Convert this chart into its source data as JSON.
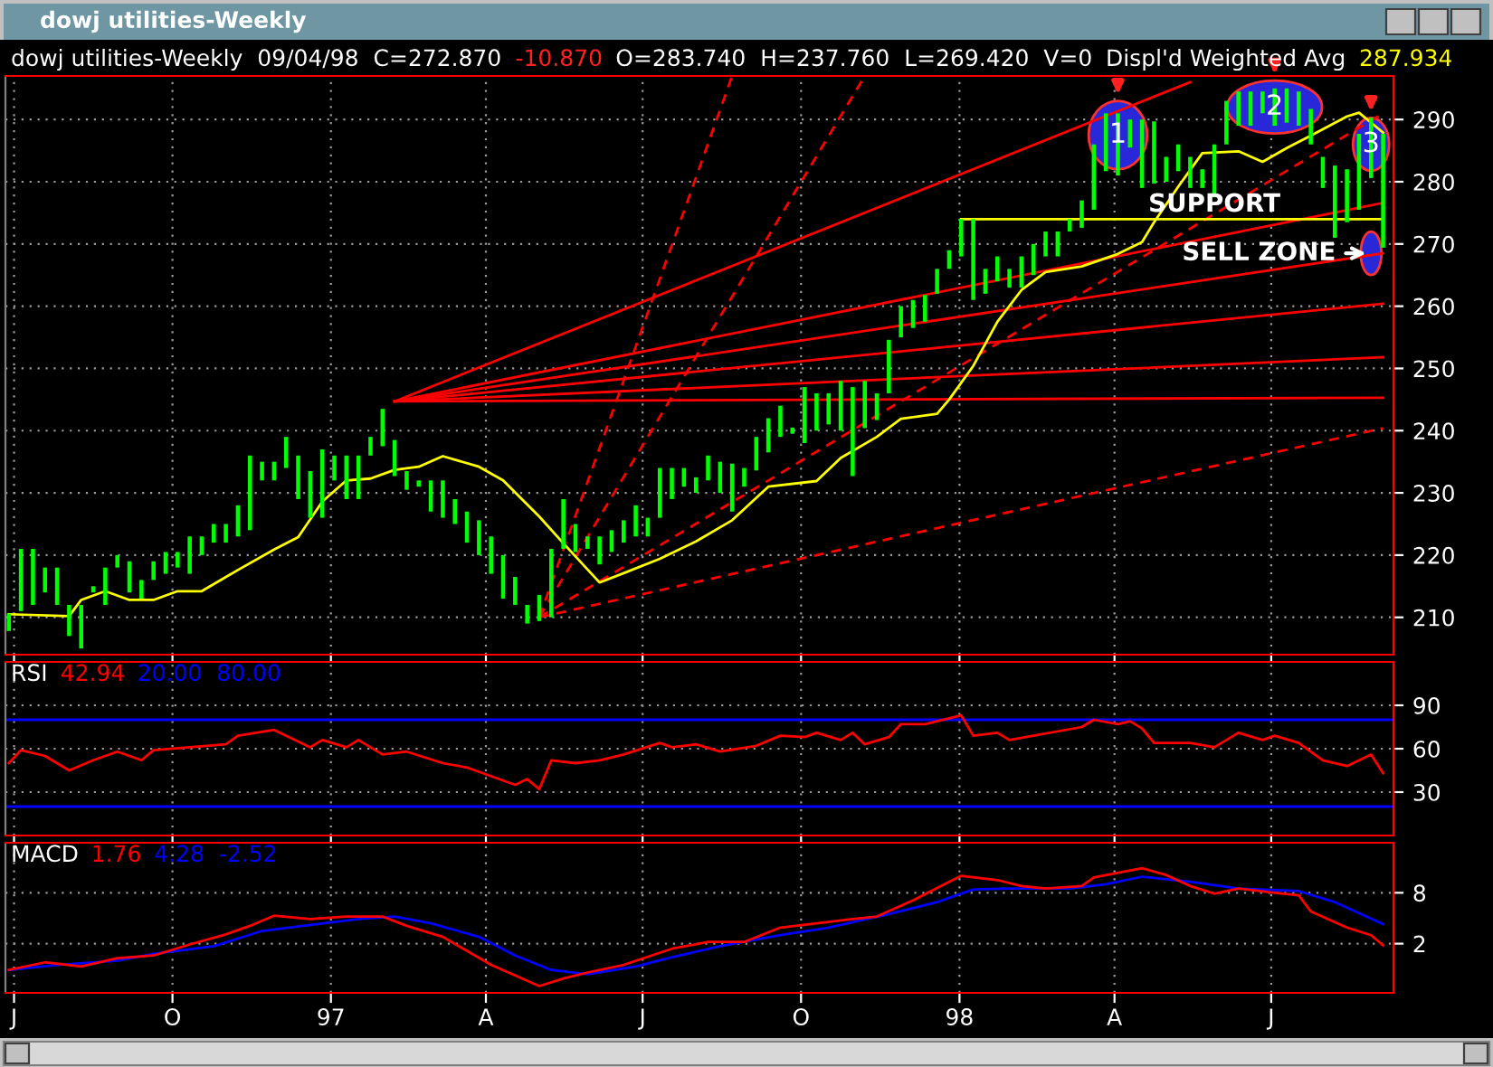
{
  "chart_data": [
    {
      "type": "bar",
      "title": "dowj utilities-Weekly",
      "subtitle": "dowj utilities-Weekly  09/04/98  C=272.870",
      "annotations": [
        "-10.870",
        "O=283.740  H=237.760  L=269.420  V=0",
        "287.934",
        {
          "text": "1",
          "x": "1998-04-03",
          "y": 287.5
        },
        {
          "text": "2",
          "x": "1998-07-03",
          "y": 292
        },
        {
          "text": "3",
          "x": "1998-08-28",
          "y": 286
        },
        {
          "text": "SUPPORT",
          "x": "1998-05-29",
          "y": 276.3
        },
        {
          "text": "SELL ZONE",
          "x": "1998-08-28",
          "y": 268.5
        }
      ],
      "series": [
        {
          "type": "bar",
          "color": "#00ff00",
          "x": [
            "1996-06-28",
            "1996-07-05",
            "1996-07-12",
            "1996-07-19",
            "1996-07-26",
            "1996-08-02",
            "1996-08-09",
            "1996-08-16",
            "1996-08-23",
            "1996-08-30",
            "1996-09-06",
            "1996-09-13",
            "1996-09-20",
            "1996-09-27",
            "1996-10-04",
            "1996-10-11",
            "1996-10-18",
            "1996-10-25",
            "1996-11-01",
            "1996-11-08",
            "1996-11-15",
            "1996-11-22",
            "1996-11-29",
            "1996-12-06",
            "1996-12-13",
            "1996-12-20",
            "1996-12-27",
            "1997-01-03",
            "1997-01-10",
            "1997-01-17",
            "1997-01-24",
            "1997-01-31",
            "1997-02-07",
            "1997-02-14",
            "1997-02-21",
            "1997-02-28",
            "1997-03-07",
            "1997-03-14",
            "1997-03-21",
            "1997-03-28",
            "1997-04-04",
            "1997-04-11",
            "1997-04-18",
            "1997-04-25",
            "1997-05-02",
            "1997-05-09",
            "1997-05-16",
            "1997-05-23",
            "1997-05-30",
            "1997-06-06",
            "1997-06-13",
            "1997-06-20",
            "1997-06-27",
            "1997-07-04",
            "1997-07-11",
            "1997-07-18",
            "1997-07-25",
            "1997-08-01",
            "1997-08-08",
            "1997-08-15",
            "1997-08-22",
            "1997-08-29",
            "1997-09-05",
            "1997-09-12",
            "1997-09-19",
            "1997-09-26",
            "1997-10-03",
            "1997-10-10",
            "1997-10-17",
            "1997-10-24",
            "1997-10-31",
            "1997-11-07",
            "1997-11-14",
            "1997-11-21",
            "1997-11-28",
            "1997-12-05",
            "1997-12-12",
            "1997-12-19",
            "1997-12-26",
            "1998-01-02",
            "1998-01-09",
            "1998-01-16",
            "1998-01-23",
            "1998-01-30",
            "1998-02-06",
            "1998-02-13",
            "1998-02-20",
            "1998-02-27",
            "1998-03-06",
            "1998-03-13",
            "1998-03-20",
            "1998-03-27",
            "1998-04-03",
            "1998-04-10",
            "1998-04-17",
            "1998-04-24",
            "1998-05-01",
            "1998-05-08",
            "1998-05-15",
            "1998-05-22",
            "1998-05-29",
            "1998-06-05",
            "1998-06-12",
            "1998-06-19",
            "1998-06-26",
            "1998-07-03",
            "1998-07-10",
            "1998-07-17",
            "1998-07-24",
            "1998-07-31",
            "1998-08-07",
            "1998-08-14",
            "1998-08-21",
            "1998-08-28",
            "1998-09-04"
          ],
          "base": [
            207.8,
            211,
            212,
            214,
            212,
            207,
            205,
            214,
            212,
            218,
            214,
            213,
            216,
            217,
            218,
            217,
            220,
            222,
            222,
            223,
            224,
            232,
            232,
            234,
            229,
            226,
            226,
            232,
            229,
            229,
            236,
            237.5,
            232.7,
            230.5,
            231,
            227,
            226,
            225,
            222,
            220,
            217,
            213,
            212,
            209,
            209.4,
            210,
            221,
            220.5,
            221,
            218.5,
            220.5,
            222,
            223,
            223,
            226,
            229,
            231,
            230,
            232,
            230,
            227,
            231,
            233.6,
            236.5,
            239,
            239.5,
            238,
            240,
            241,
            240,
            232.7,
            240.4,
            241.7,
            246,
            255,
            256.5,
            257.5,
            262,
            266,
            268,
            261,
            262,
            264,
            263,
            263,
            265,
            268,
            268,
            272,
            272.6,
            275.5,
            281.7,
            281,
            285.5,
            279,
            279.7,
            280,
            281.7,
            279,
            279,
            277.5,
            286,
            289,
            289,
            291,
            289,
            289.5,
            289,
            286,
            279,
            271,
            273.5,
            275.5,
            280.6,
            269.4
          ],
          "values": [
            2.8,
            10,
            9,
            4,
            6,
            5,
            7,
            1,
            6,
            2,
            5,
            3,
            3,
            3.5,
            2.5,
            6,
            3,
            3,
            3,
            5,
            12,
            3,
            3,
            5,
            7,
            7.5,
            11,
            4,
            7,
            7,
            3,
            6,
            5.8,
            3,
            1,
            5,
            6,
            4,
            5,
            5.6,
            6,
            7,
            4.5,
            3,
            4.2,
            11,
            8,
            4.5,
            2,
            4.5,
            3.5,
            3.6,
            5,
            3,
            8,
            5,
            3,
            2.5,
            4,
            5,
            7.7,
            3,
            5.4,
            5.5,
            5,
            1,
            9,
            6,
            5,
            8,
            14.3,
            7.6,
            4.3,
            8.6,
            5,
            4.5,
            4.3,
            4,
            3,
            6,
            13,
            4,
            4,
            3,
            5,
            5,
            4,
            4,
            2,
            4.4,
            10.5,
            9.3,
            10,
            4.5,
            11,
            10,
            4,
            4.3,
            5,
            3,
            8.5,
            7,
            5.5,
            5.5,
            3.5,
            6,
            5.5,
            5.5,
            5.7,
            5,
            11.6,
            8.5,
            12.2,
            9.7,
            18.3
          ]
        },
        {
          "type": "line",
          "name": "Displ'd Weighted Avg",
          "color": "#ffff00",
          "x": [
            "1996-06-28",
            "1996-08-02",
            "1996-08-09",
            "1996-08-23",
            "1996-09-06",
            "1996-09-20",
            "1996-10-04",
            "1996-10-18",
            "1996-11-08",
            "1996-11-29",
            "1996-12-13",
            "1996-12-27",
            "1997-01-10",
            "1997-01-24",
            "1997-02-07",
            "1997-02-21",
            "1997-03-07",
            "1997-03-28",
            "1997-04-11",
            "1997-05-02",
            "1997-05-16",
            "1997-06-06",
            "1997-06-20",
            "1997-07-11",
            "1997-08-01",
            "1997-08-22",
            "1997-09-12",
            "1997-10-10",
            "1997-10-24",
            "1997-11-14",
            "1997-11-28",
            "1997-12-19",
            "1997-12-26",
            "1998-01-09",
            "1998-01-23",
            "1998-02-06",
            "1998-02-20",
            "1998-03-13",
            "1998-04-03",
            "1998-04-17",
            "1998-04-24",
            "1998-05-08",
            "1998-05-22",
            "1998-06-12",
            "1998-06-26",
            "1998-07-10",
            "1998-07-24",
            "1998-08-14",
            "1998-08-21",
            "1998-09-04"
          ],
          "values": [
            210.5,
            210.2,
            212.8,
            214.2,
            212.8,
            212.8,
            214.2,
            214.2,
            217.6,
            220.9,
            222.9,
            228.6,
            232,
            232.3,
            233.7,
            234.2,
            235.9,
            234.2,
            232,
            226.2,
            221.9,
            215.6,
            217.1,
            219.4,
            222.2,
            225.6,
            231,
            231.9,
            235.6,
            239,
            241.9,
            242.7,
            245,
            250.4,
            257.5,
            262.6,
            265.5,
            266.4,
            268.4,
            270.3,
            273.5,
            279.2,
            284.6,
            284.9,
            283.2,
            285.4,
            287.4,
            290.5,
            291.1,
            287.9
          ]
        },
        {
          "type": "line",
          "color": "#ffff00",
          "x": [
            "1998-01-02",
            "1998-09-04"
          ],
          "values": [
            274,
            274
          ]
        },
        {
          "type": "line",
          "color": "#ff0000",
          "x": [
            "1997-02-07",
            "1998-05-15"
          ],
          "values": [
            244.7,
            296
          ]
        },
        {
          "type": "line",
          "color": "#ff0000",
          "x": [
            "1997-02-07",
            "1998-09-04"
          ],
          "values": [
            244.7,
            276.6
          ]
        },
        {
          "type": "line",
          "color": "#ff0000",
          "x": [
            "1997-02-07",
            "1998-09-04"
          ],
          "values": [
            244.7,
            268.5
          ]
        },
        {
          "type": "line",
          "color": "#ff0000",
          "x": [
            "1997-02-07",
            "1998-09-04"
          ],
          "values": [
            244.7,
            260.4
          ]
        },
        {
          "type": "line",
          "color": "#ff0000",
          "x": [
            "1997-02-07",
            "1998-09-04"
          ],
          "values": [
            244.7,
            251.8
          ]
        },
        {
          "type": "line",
          "color": "#ff0000",
          "x": [
            "1997-02-07",
            "1998-09-04"
          ],
          "values": [
            244.7,
            245.3
          ]
        },
        {
          "type": "line",
          "color": "#ff0000",
          "line_style": "dashed",
          "x": [
            "1997-05-02",
            "1998-09-04"
          ],
          "values": [
            210,
            240.4
          ]
        },
        {
          "type": "line",
          "color": "#ff0000",
          "line_style": "dashed",
          "x": [
            "1997-05-02",
            "1998-09-04"
          ],
          "values": [
            210,
            291
          ]
        },
        {
          "type": "line",
          "color": "#ff0000",
          "line_style": "dashed",
          "x": [
            "1997-05-02",
            "1997-11-07"
          ],
          "values": [
            210,
            297
          ]
        },
        {
          "type": "line",
          "color": "#ff0000",
          "line_style": "dashed",
          "x": [
            "1997-05-02",
            "1997-08-22"
          ],
          "values": [
            210,
            297
          ]
        }
      ],
      "xlim": [
        "1996-06-26",
        "1998-09-10"
      ],
      "xticks": [
        {
          "value": "1996-07-01",
          "label": null
        },
        {
          "value": "1996-10-01",
          "label": null
        },
        {
          "value": "1997-01-01",
          "label": null
        },
        {
          "value": "1997-04-01",
          "label": null
        },
        {
          "value": "1997-07-01",
          "label": null
        },
        {
          "value": "1997-10-01",
          "label": null
        },
        {
          "value": "1998-01-01",
          "label": null
        },
        {
          "value": "1998-04-01",
          "label": null
        },
        {
          "value": "1998-07-01",
          "label": null
        }
      ],
      "ylim": [
        204,
        297
      ],
      "yticks": [
        210,
        220,
        230,
        240,
        250,
        260,
        270,
        280,
        290
      ],
      "tick_labels": "y",
      "grid": true,
      "legend": false
    },
    {
      "type": "line",
      "title": "RSI",
      "annotations": [
        "42.94",
        "20.00  80.00"
      ],
      "series": [
        {
          "color": "#ff0000",
          "x": [
            "1996-06-28",
            "1996-07-05",
            "1996-07-19",
            "1996-08-02",
            "1996-08-16",
            "1996-08-30",
            "1996-09-13",
            "1996-09-20",
            "1996-10-11",
            "1996-11-01",
            "1996-11-08",
            "1996-11-29",
            "1996-12-20",
            "1996-12-27",
            "1997-01-10",
            "1997-01-17",
            "1997-01-31",
            "1997-02-14",
            "1997-03-07",
            "1997-03-21",
            "1997-04-18",
            "1997-04-25",
            "1997-05-02",
            "1997-05-09",
            "1997-05-23",
            "1997-06-06",
            "1997-06-20",
            "1997-07-11",
            "1997-07-18",
            "1997-08-01",
            "1997-08-15",
            "1997-09-05",
            "1997-09-19",
            "1997-10-03",
            "1997-10-10",
            "1997-10-24",
            "1997-10-31",
            "1997-11-07",
            "1997-11-21",
            "1997-11-28",
            "1997-12-12",
            "1998-01-02",
            "1998-01-09",
            "1998-01-23",
            "1998-01-30",
            "1998-03-13",
            "1998-03-20",
            "1998-04-03",
            "1998-04-10",
            "1998-04-17",
            "1998-04-24",
            "1998-05-15",
            "1998-05-29",
            "1998-06-12",
            "1998-06-26",
            "1998-07-03",
            "1998-07-17",
            "1998-07-31",
            "1998-08-14",
            "1998-08-28",
            "1998-09-04"
          ],
          "values": [
            50,
            59,
            55,
            45,
            52,
            58,
            52,
            59,
            61,
            63,
            69,
            73,
            61,
            66,
            61,
            66,
            56,
            58,
            50,
            47,
            35,
            39,
            32,
            52,
            50,
            52,
            56,
            64,
            61,
            63,
            58,
            62,
            69,
            68,
            71,
            66,
            71,
            63,
            68,
            77,
            77,
            83,
            69,
            71,
            66,
            75,
            80,
            77,
            79,
            74,
            64,
            64,
            61,
            71,
            66,
            69,
            64,
            52,
            48,
            56,
            43
          ]
        }
      ],
      "ref_lines": [
        {
          "axis": "y",
          "value": 20,
          "color": "#0000ff"
        },
        {
          "axis": "y",
          "value": 80,
          "color": "#0000ff"
        }
      ],
      "xlim": [
        "1996-06-26",
        "1998-09-10"
      ],
      "xticks": [
        {
          "value": "1996-07-01",
          "label": null
        },
        {
          "value": "1996-10-01",
          "label": null
        },
        {
          "value": "1997-01-01",
          "label": null
        },
        {
          "value": "1997-04-01",
          "label": null
        },
        {
          "value": "1997-07-01",
          "label": null
        },
        {
          "value": "1997-10-01",
          "label": null
        },
        {
          "value": "1998-01-01",
          "label": null
        },
        {
          "value": "1998-04-01",
          "label": null
        },
        {
          "value": "1998-07-01",
          "label": null
        }
      ],
      "ylim": [
        0,
        120
      ],
      "yticks": [
        30,
        60,
        90
      ],
      "tick_labels": "y",
      "grid": true,
      "legend": false
    },
    {
      "type": "line",
      "title": "MACD",
      "annotations": [
        "1.76",
        "4.28  -2.52"
      ],
      "series": [
        {
          "color": "#ff0000",
          "x": [
            "1996-06-28",
            "1996-07-19",
            "1996-08-09",
            "1996-08-30",
            "1996-09-20",
            "1996-10-11",
            "1996-11-01",
            "1996-11-15",
            "1996-11-29",
            "1996-12-20",
            "1997-01-10",
            "1997-01-31",
            "1997-02-14",
            "1997-03-07",
            "1997-04-04",
            "1997-05-02",
            "1997-05-16",
            "1997-05-30",
            "1997-06-20",
            "1997-07-18",
            "1997-08-08",
            "1997-08-29",
            "1997-09-19",
            "1997-10-10",
            "1997-10-31",
            "1997-11-14",
            "1997-12-05",
            "1997-12-26",
            "1998-01-02",
            "1998-01-23",
            "1998-02-06",
            "1998-02-20",
            "1998-03-13",
            "1998-03-20",
            "1998-04-17",
            "1998-05-01",
            "1998-05-15",
            "1998-05-29",
            "1998-06-12",
            "1998-07-03",
            "1998-07-17",
            "1998-07-24",
            "1998-08-14",
            "1998-08-28",
            "1998-09-04"
          ],
          "values": [
            -1.1,
            -0.2,
            -0.7,
            0.3,
            0.6,
            1.9,
            3.1,
            4.1,
            5.3,
            4.9,
            5.2,
            5.2,
            4.1,
            2.8,
            -0.5,
            -3,
            -2.1,
            -1.4,
            -0.5,
            1.4,
            2.2,
            2.2,
            3.9,
            4.4,
            4.9,
            5.2,
            7.1,
            9.3,
            10,
            9.5,
            8.8,
            8.5,
            8.8,
            9.8,
            10.9,
            10.1,
            8.8,
            7.9,
            8.5,
            8,
            7.7,
            5.8,
            3.9,
            3,
            1.8
          ]
        },
        {
          "color": "#0000ff",
          "x": [
            "1996-06-28",
            "1996-07-26",
            "1996-08-30",
            "1996-09-20",
            "1996-10-25",
            "1996-11-22",
            "1996-12-20",
            "1997-01-17",
            "1997-02-07",
            "1997-02-28",
            "1997-03-28",
            "1997-04-18",
            "1997-05-09",
            "1997-05-30",
            "1997-06-27",
            "1997-07-18",
            "1997-08-15",
            "1997-09-19",
            "1997-10-17",
            "1997-11-21",
            "1997-12-19",
            "1998-01-09",
            "1998-01-30",
            "1998-03-06",
            "1998-03-27",
            "1998-04-17",
            "1998-05-15",
            "1998-06-12",
            "1998-07-17",
            "1998-08-07",
            "1998-09-04"
          ],
          "values": [
            -1.1,
            -0.5,
            0,
            0.8,
            1.7,
            3.5,
            4.2,
            4.9,
            5.2,
            4.4,
            2.8,
            0.6,
            -1.1,
            -1.6,
            -0.7,
            0.4,
            1.7,
            3,
            3.9,
            5.5,
            6.9,
            8.4,
            8.5,
            8.5,
            9,
            9.9,
            9.3,
            8.5,
            8.2,
            6.9,
            4.3
          ]
        }
      ],
      "xlim": [
        "1996-06-26",
        "1998-09-10"
      ],
      "xticks": [
        {
          "value": "1996-07-01",
          "label": "J"
        },
        {
          "value": "1996-10-01",
          "label": "O"
        },
        {
          "value": "1997-01-01",
          "label": "97"
        },
        {
          "value": "1997-04-01",
          "label": "A"
        },
        {
          "value": "1997-07-01",
          "label": "J"
        },
        {
          "value": "1997-10-01",
          "label": "O"
        },
        {
          "value": "1998-01-01",
          "label": "98"
        },
        {
          "value": "1998-04-01",
          "label": "A"
        },
        {
          "value": "1998-07-01",
          "label": "J"
        }
      ],
      "ylim": [
        -3.8,
        13.9
      ],
      "yticks": [
        2,
        8
      ],
      "grid": true,
      "legend": false
    }
  ]
}
